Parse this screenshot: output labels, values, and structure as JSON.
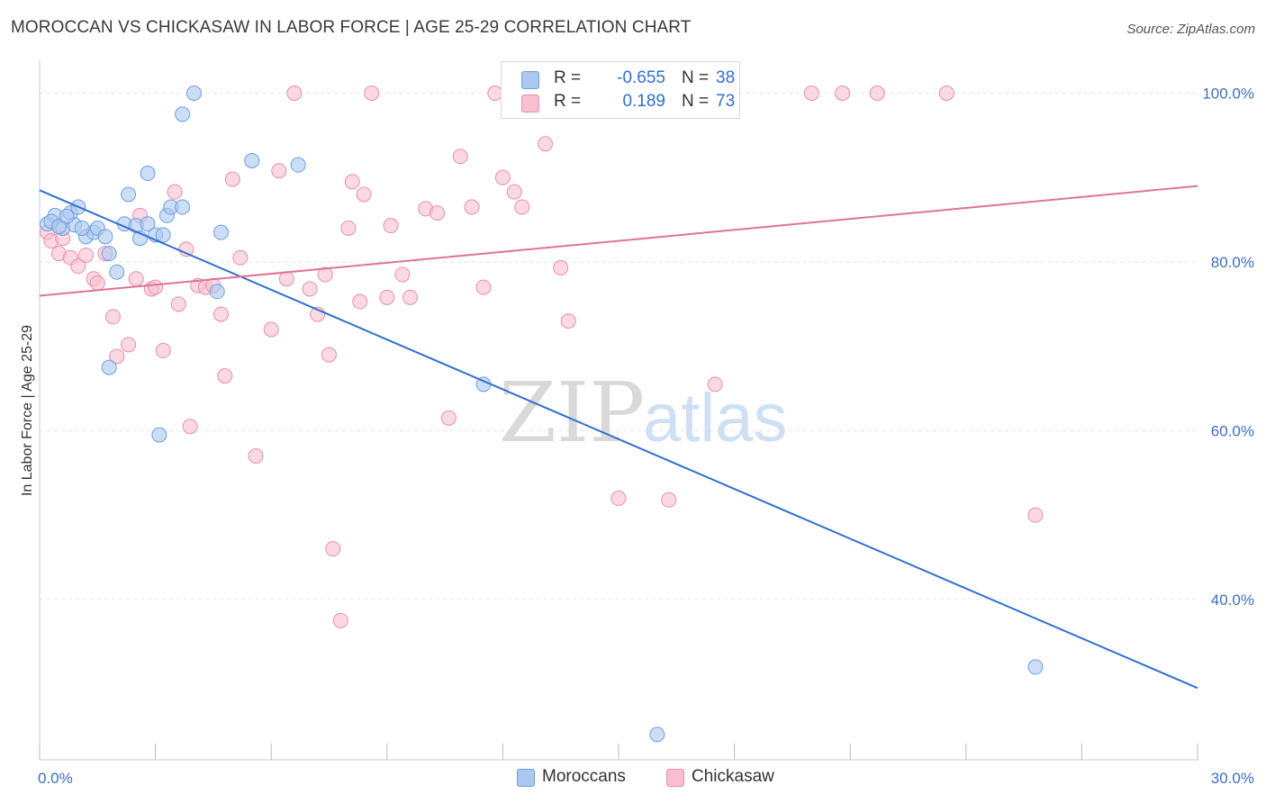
{
  "title": "MOROCCAN VS CHICKASAW IN LABOR FORCE | AGE 25-29 CORRELATION CHART",
  "source": "Source: ZipAtlas.com",
  "watermark": {
    "part1": "ZIP",
    "part2": "atlas"
  },
  "legend": {
    "moroccans": {
      "r_label": "R =",
      "r_value": "-0.655",
      "n_label": "N =",
      "n_value": "38"
    },
    "chickasaw": {
      "r_label": "R =",
      "r_value": "0.189",
      "n_label": "N =",
      "n_value": "73"
    }
  },
  "bottom_legend": {
    "moroccans": "Moroccans",
    "chickasaw": "Chickasaw"
  },
  "colors": {
    "moroccans_fill": "#aac8f0",
    "moroccans_stroke": "#6f9fdd",
    "moroccans_line": "#2f6fd0",
    "chickasaw_fill": "#f7bfd0",
    "chickasaw_stroke": "#e98eab",
    "chickasaw_line": "#e0729a"
  },
  "chart_data": {
    "type": "scatter",
    "title": "MOROCCAN VS CHICKASAW IN LABOR FORCE | AGE 25-29 CORRELATION CHART",
    "xlabel": "",
    "ylabel": "In Labor Force | Age 25-29",
    "xlim": [
      0,
      30
    ],
    "ylim": [
      21,
      104
    ],
    "x_tick_labels": [
      {
        "value": 0,
        "label": "0.0%"
      },
      {
        "value": 30,
        "label": "30.0%"
      }
    ],
    "y_tick_labels": [
      {
        "value": 100,
        "label": "100.0%"
      },
      {
        "value": 80,
        "label": "80.0%"
      },
      {
        "value": 60,
        "label": "60.0%"
      },
      {
        "value": 40,
        "label": "40.0%"
      }
    ],
    "grid": true,
    "series": [
      {
        "name": "Moroccans",
        "trend": {
          "x": [
            0,
            30
          ],
          "y": [
            88.5,
            29.5
          ]
        },
        "points": [
          [
            0.2,
            84.5
          ],
          [
            0.4,
            85.5
          ],
          [
            0.6,
            84
          ],
          [
            0.8,
            85.8
          ],
          [
            1.0,
            86.5
          ],
          [
            1.2,
            83
          ],
          [
            1.4,
            83.5
          ],
          [
            1.5,
            84
          ],
          [
            1.7,
            83
          ],
          [
            1.8,
            81
          ],
          [
            2.0,
            78.8
          ],
          [
            2.2,
            84.5
          ],
          [
            2.3,
            88
          ],
          [
            2.5,
            84.3
          ],
          [
            2.6,
            82.8
          ],
          [
            2.8,
            84.5
          ],
          [
            2.8,
            90.5
          ],
          [
            3.0,
            83.2
          ],
          [
            3.1,
            59.5
          ],
          [
            3.2,
            83.2
          ],
          [
            3.3,
            85.5
          ],
          [
            3.4,
            86.5
          ],
          [
            3.7,
            86.5
          ],
          [
            3.7,
            97.5
          ],
          [
            4.0,
            100
          ],
          [
            4.7,
            83.5
          ],
          [
            4.6,
            76.5
          ],
          [
            5.5,
            92
          ],
          [
            6.7,
            91.5
          ],
          [
            11.5,
            65.5
          ],
          [
            16.0,
            24
          ],
          [
            25.8,
            32
          ],
          [
            1.8,
            67.5
          ],
          [
            0.3,
            84.8
          ],
          [
            0.5,
            84.2
          ],
          [
            0.9,
            84.4
          ],
          [
            1.1,
            84
          ],
          [
            0.7,
            85.4
          ]
        ]
      },
      {
        "name": "Chickasaw",
        "trend": {
          "x": [
            0,
            30
          ],
          "y": [
            76,
            89
          ]
        },
        "points": [
          [
            0.2,
            83.5
          ],
          [
            0.3,
            82.5
          ],
          [
            0.5,
            81
          ],
          [
            0.6,
            82.8
          ],
          [
            0.8,
            80.5
          ],
          [
            1.0,
            79.5
          ],
          [
            1.2,
            80.8
          ],
          [
            1.4,
            78
          ],
          [
            1.5,
            77.5
          ],
          [
            1.7,
            81
          ],
          [
            1.9,
            73.5
          ],
          [
            2.0,
            68.8
          ],
          [
            2.3,
            70.2
          ],
          [
            2.5,
            78
          ],
          [
            2.6,
            85.5
          ],
          [
            2.9,
            76.8
          ],
          [
            3.0,
            77
          ],
          [
            3.2,
            69.5
          ],
          [
            3.5,
            88.3
          ],
          [
            3.6,
            75
          ],
          [
            3.8,
            81.5
          ],
          [
            3.9,
            60.5
          ],
          [
            4.1,
            77.2
          ],
          [
            4.3,
            77
          ],
          [
            4.5,
            77.2
          ],
          [
            4.7,
            73.8
          ],
          [
            4.8,
            66.5
          ],
          [
            5.0,
            89.8
          ],
          [
            5.2,
            80.5
          ],
          [
            5.6,
            57
          ],
          [
            6.0,
            72
          ],
          [
            6.2,
            90.8
          ],
          [
            6.4,
            78
          ],
          [
            6.6,
            100
          ],
          [
            7.0,
            76.8
          ],
          [
            7.2,
            73.8
          ],
          [
            7.4,
            78.5
          ],
          [
            7.5,
            69
          ],
          [
            7.6,
            46
          ],
          [
            7.8,
            37.5
          ],
          [
            8.0,
            84
          ],
          [
            8.1,
            89.5
          ],
          [
            8.3,
            75.3
          ],
          [
            8.4,
            88
          ],
          [
            8.6,
            100
          ],
          [
            9.0,
            75.8
          ],
          [
            9.1,
            84.3
          ],
          [
            9.4,
            78.5
          ],
          [
            9.6,
            75.8
          ],
          [
            10.0,
            86.3
          ],
          [
            10.3,
            85.8
          ],
          [
            10.6,
            61.5
          ],
          [
            10.9,
            92.5
          ],
          [
            11.2,
            86.5
          ],
          [
            11.5,
            77
          ],
          [
            11.8,
            100
          ],
          [
            12.0,
            90
          ],
          [
            12.3,
            88.3
          ],
          [
            12.5,
            86.5
          ],
          [
            12.8,
            98
          ],
          [
            13.1,
            94
          ],
          [
            13.5,
            79.3
          ],
          [
            13.7,
            73
          ],
          [
            14.0,
            100
          ],
          [
            15.0,
            52
          ],
          [
            16.3,
            51.8
          ],
          [
            17.0,
            100
          ],
          [
            17.5,
            65.5
          ],
          [
            20.0,
            100
          ],
          [
            20.8,
            100
          ],
          [
            21.7,
            100
          ],
          [
            23.5,
            100
          ],
          [
            25.8,
            50
          ]
        ]
      }
    ]
  }
}
